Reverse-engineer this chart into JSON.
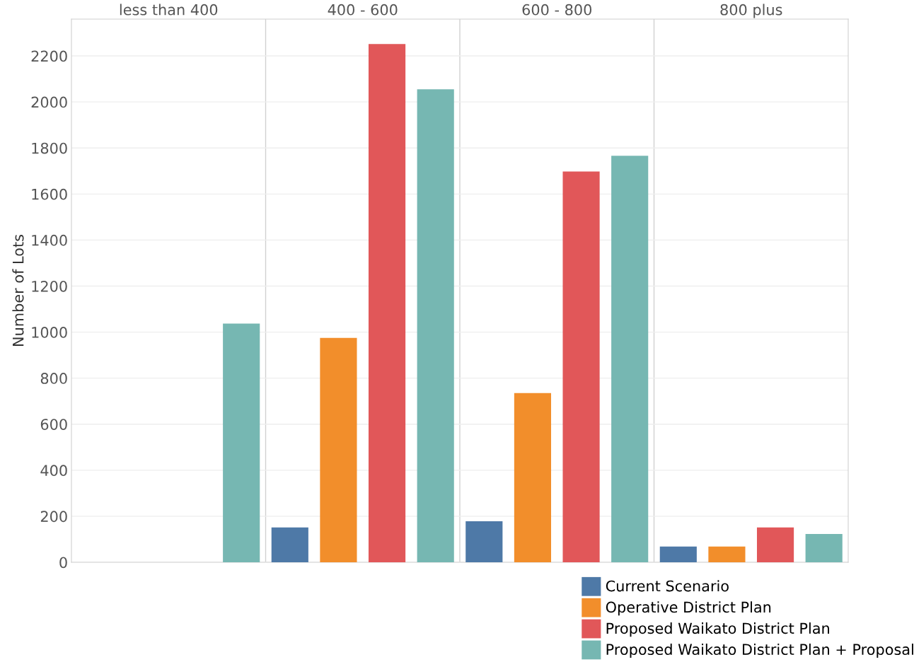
{
  "chart_data": {
    "type": "bar",
    "ylabel": "Number of Lots",
    "categories": [
      "less than 400",
      "400 - 600",
      "600 - 800",
      "800 plus"
    ],
    "series": [
      {
        "name": "Current Scenario",
        "color": "#4e79a7",
        "values": [
          null,
          151,
          178,
          68
        ]
      },
      {
        "name": "Operative District Plan",
        "color": "#f28e2b",
        "values": [
          null,
          975,
          735,
          68
        ]
      },
      {
        "name": "Proposed Waikato District Plan",
        "color": "#e15759",
        "values": [
          null,
          2252,
          1698,
          151
        ]
      },
      {
        "name": "Proposed Waikato District Plan + Proposal",
        "color": "#76b7b2",
        "values": [
          1037,
          2055,
          1766,
          123
        ]
      }
    ],
    "ylim": [
      0,
      2360
    ],
    "yticks": [
      0,
      200,
      400,
      600,
      800,
      1000,
      1200,
      1400,
      1600,
      1800,
      2000,
      2200
    ],
    "grid": "y",
    "legend": "bottom right"
  }
}
